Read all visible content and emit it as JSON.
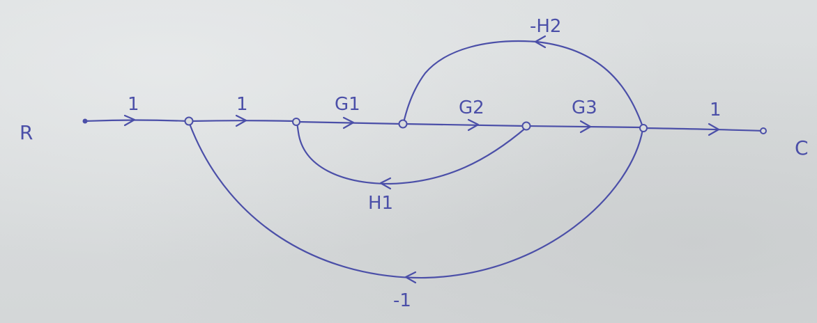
{
  "diagram": {
    "input_label": "R",
    "output_label": "C",
    "branch_gains": {
      "r_to_n1": "1",
      "n1_to_n2": "1",
      "g1": "G1",
      "g2": "G2",
      "g3": "G3",
      "n5_to_c": "1",
      "h1": "H1",
      "h2": "-H2",
      "unity_feedback": "-1"
    }
  }
}
